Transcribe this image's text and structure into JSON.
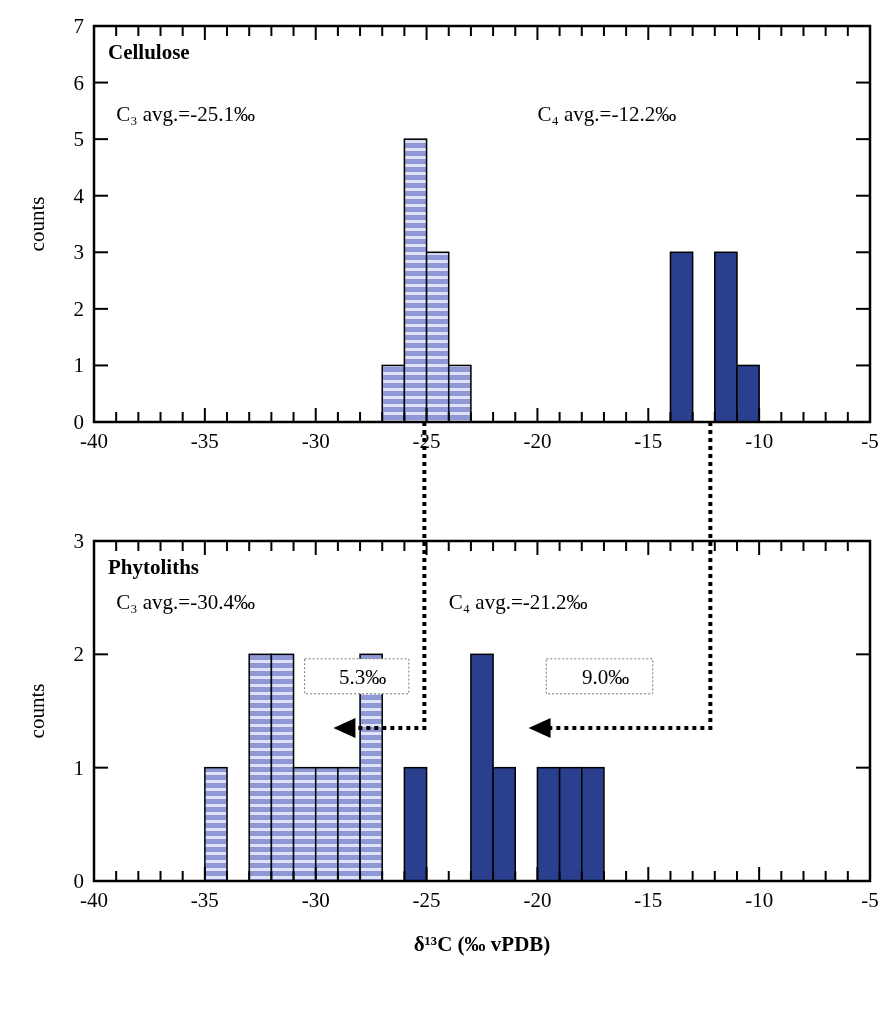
{
  "chart_data": [
    {
      "type": "histogram",
      "title": "Cellulose",
      "ylabel": "counts",
      "bins": [
        -27,
        -26,
        -25,
        -24,
        -23,
        -22,
        -21,
        -20,
        -19,
        -18,
        -17,
        -16,
        -15,
        -14,
        -13,
        -12,
        -11,
        -10
      ],
      "series": [
        {
          "color": "#8e98d6",
          "values": [
            1,
            5,
            3,
            1,
            0,
            0,
            0,
            0,
            0,
            0,
            0,
            0,
            0,
            0,
            0,
            0,
            0
          ]
        },
        {
          "color": "#2b3f8f",
          "values": [
            0,
            0,
            0,
            0,
            0,
            0,
            0,
            0,
            0,
            0,
            0,
            0,
            0,
            3,
            0,
            3,
            1
          ]
        }
      ],
      "xlim": [
        -40,
        -5
      ],
      "ylim": [
        0,
        7
      ],
      "yticks": [
        0,
        1,
        2,
        3,
        4,
        5,
        6,
        7
      ],
      "xticks": [
        -40,
        {
          "value": -39,
          "label": null
        },
        {
          "value": -38,
          "label": null
        },
        {
          "value": -37,
          "label": null
        },
        {
          "value": -36,
          "label": null
        },
        -35,
        {
          "value": -34,
          "label": null
        },
        {
          "value": -33,
          "label": null
        },
        {
          "value": -32,
          "label": null
        },
        {
          "value": -31,
          "label": null
        },
        -30,
        {
          "value": -29,
          "label": null
        },
        {
          "value": -28,
          "label": null
        },
        {
          "value": -27,
          "label": null
        },
        {
          "value": -26,
          "label": null
        },
        -25,
        {
          "value": -24,
          "label": null
        },
        {
          "value": -23,
          "label": null
        },
        {
          "value": -22,
          "label": null
        },
        {
          "value": -21,
          "label": null
        },
        -20,
        {
          "value": -19,
          "label": null
        },
        {
          "value": -18,
          "label": null
        },
        {
          "value": -17,
          "label": null
        },
        {
          "value": -16,
          "label": null
        },
        -15,
        {
          "value": -14,
          "label": null
        },
        {
          "value": -13,
          "label": null
        },
        {
          "value": -12,
          "label": null
        },
        {
          "value": -11,
          "label": null
        },
        -10,
        {
          "value": -9,
          "label": null
        },
        {
          "value": -8,
          "label": null
        },
        {
          "value": -7,
          "label": null
        },
        {
          "value": -6,
          "label": null
        },
        -5
      ],
      "annotations": [
        "C₃ avg.=-25.1‰",
        "C₄ avg.=-12.2‰"
      ]
    },
    {
      "type": "histogram",
      "title": "Phytoliths",
      "ylabel": "counts",
      "xlabel": "δ¹³C (‰ vPDB)",
      "bins": [
        -35,
        -34,
        -33,
        -32,
        -31,
        -30,
        -29,
        -28,
        -27,
        -26,
        -25,
        -24,
        -23,
        -22,
        -21,
        -20,
        -19,
        -18,
        -17
      ],
      "series": [
        {
          "color": "#8e98d6",
          "values": [
            1,
            0,
            2,
            2,
            1,
            1,
            1,
            2,
            0,
            0,
            0,
            0,
            0,
            0,
            0,
            0,
            0,
            0
          ]
        },
        {
          "color": "#2b3f8f",
          "values": [
            0,
            0,
            0,
            0,
            0,
            0,
            0,
            0,
            0,
            1,
            0,
            0,
            2,
            1,
            0,
            1,
            1,
            1
          ]
        }
      ],
      "xlim": [
        -40,
        -5
      ],
      "ylim": [
        0,
        3
      ],
      "yticks": [
        0,
        1,
        2,
        3
      ],
      "xticks": [
        -40,
        {
          "value": -39,
          "label": null
        },
        {
          "value": -38,
          "label": null
        },
        {
          "value": -37,
          "label": null
        },
        {
          "value": -36,
          "label": null
        },
        -35,
        {
          "value": -34,
          "label": null
        },
        {
          "value": -33,
          "label": null
        },
        {
          "value": -32,
          "label": null
        },
        {
          "value": -31,
          "label": null
        },
        -30,
        {
          "value": -29,
          "label": null
        },
        {
          "value": -28,
          "label": null
        },
        {
          "value": -27,
          "label": null
        },
        {
          "value": -26,
          "label": null
        },
        -25,
        {
          "value": -24,
          "label": null
        },
        {
          "value": -23,
          "label": null
        },
        {
          "value": -22,
          "label": null
        },
        {
          "value": -21,
          "label": null
        },
        -20,
        {
          "value": -19,
          "label": null
        },
        {
          "value": -18,
          "label": null
        },
        {
          "value": -17,
          "label": null
        },
        {
          "value": -16,
          "label": null
        },
        -15,
        {
          "value": -14,
          "label": null
        },
        {
          "value": -13,
          "label": null
        },
        {
          "value": -12,
          "label": null
        },
        {
          "value": -11,
          "label": null
        },
        -10,
        {
          "value": -9,
          "label": null
        },
        {
          "value": -8,
          "label": null
        },
        {
          "value": -7,
          "label": null
        },
        {
          "value": -6,
          "label": null
        },
        -5
      ],
      "annotations": [
        "C₃ avg.=-30.4‰",
        "C₄ avg.=-21.2‰",
        "5.3‰",
        "9.0‰"
      ]
    }
  ]
}
